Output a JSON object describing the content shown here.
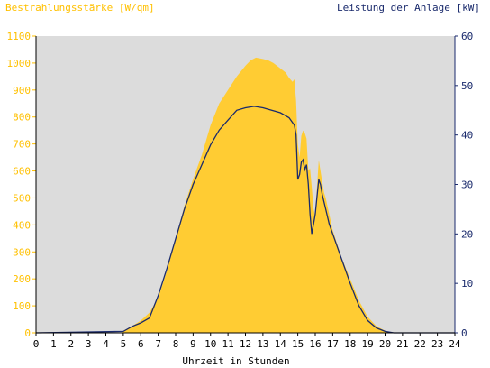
{
  "chart_data": {
    "type": "area",
    "left_axis": {
      "label": "Bestrahlungsstärke [W/qm]",
      "range": [
        0,
        1100
      ],
      "ticks": [
        0,
        100,
        200,
        300,
        400,
        500,
        600,
        700,
        800,
        900,
        1000,
        1100
      ],
      "color": "#ffc000"
    },
    "right_axis": {
      "label": "Leistung der Anlage [kW]",
      "range": [
        0,
        60
      ],
      "ticks": [
        0,
        10,
        20,
        30,
        40,
        50,
        60
      ],
      "color": "#1a2a6c"
    },
    "x_axis": {
      "label": "Uhrzeit in Stunden",
      "range": [
        0,
        24
      ],
      "ticks": [
        0,
        1,
        2,
        3,
        4,
        5,
        6,
        7,
        8,
        9,
        10,
        11,
        12,
        13,
        14,
        15,
        16,
        17,
        18,
        19,
        20,
        21,
        22,
        23,
        24
      ]
    },
    "grid": false,
    "plot_background": "#dcdcdc",
    "series": [
      {
        "axis": "left",
        "type": "area",
        "color": "#ffcc33",
        "x": [
          0,
          4.95,
          5.0,
          5.5,
          6.0,
          6.5,
          7.0,
          7.5,
          8.0,
          8.5,
          9.0,
          9.5,
          10.0,
          10.5,
          11.0,
          11.5,
          12.0,
          12.3,
          12.6,
          13.0,
          13.3,
          13.6,
          14.0,
          14.3,
          14.5,
          14.7,
          14.8,
          14.9,
          15.0,
          15.1,
          15.2,
          15.3,
          15.4,
          15.5,
          15.6,
          15.7,
          15.8,
          15.9,
          16.0,
          16.1,
          16.2,
          16.3,
          16.4,
          16.5,
          16.6,
          16.8,
          17.0,
          17.5,
          18.0,
          18.5,
          19.0,
          19.5,
          20.0,
          20.3,
          20.5,
          24
        ],
        "y": [
          0,
          0,
          8,
          25,
          45,
          75,
          130,
          230,
          350,
          470,
          570,
          660,
          770,
          850,
          900,
          950,
          990,
          1010,
          1020,
          1015,
          1010,
          1000,
          980,
          965,
          945,
          930,
          940,
          860,
          700,
          650,
          730,
          750,
          740,
          720,
          600,
          610,
          540,
          460,
          430,
          540,
          640,
          600,
          560,
          520,
          500,
          440,
          380,
          280,
          200,
          120,
          60,
          25,
          8,
          3,
          0,
          0
        ]
      },
      {
        "axis": "right",
        "type": "line",
        "color": "#1a2a6c",
        "x": [
          0,
          5.0,
          5.5,
          6.0,
          6.5,
          7.0,
          7.5,
          8.0,
          8.5,
          9.0,
          9.5,
          10.0,
          10.5,
          11.0,
          11.5,
          12.0,
          12.5,
          13.0,
          13.5,
          14.0,
          14.5,
          14.8,
          14.9,
          15.0,
          15.1,
          15.2,
          15.3,
          15.4,
          15.5,
          15.6,
          15.7,
          15.8,
          15.9,
          16.0,
          16.1,
          16.2,
          16.3,
          16.4,
          16.6,
          16.8,
          17.0,
          17.5,
          18.0,
          18.5,
          19.0,
          19.5,
          20.0,
          20.5,
          24
        ],
        "y": [
          0,
          0.3,
          1.3,
          2.0,
          3.0,
          7.5,
          13,
          19,
          25,
          30,
          34,
          38,
          41,
          43,
          45,
          45.5,
          45.8,
          45.5,
          45,
          44.5,
          43.5,
          42,
          40,
          31,
          32,
          34.5,
          35,
          33,
          34,
          30,
          24,
          20,
          22,
          24,
          27.5,
          31,
          30,
          28,
          25,
          22,
          20,
          15,
          10,
          5.5,
          2.5,
          1.0,
          0.3,
          0,
          0
        ]
      }
    ]
  }
}
